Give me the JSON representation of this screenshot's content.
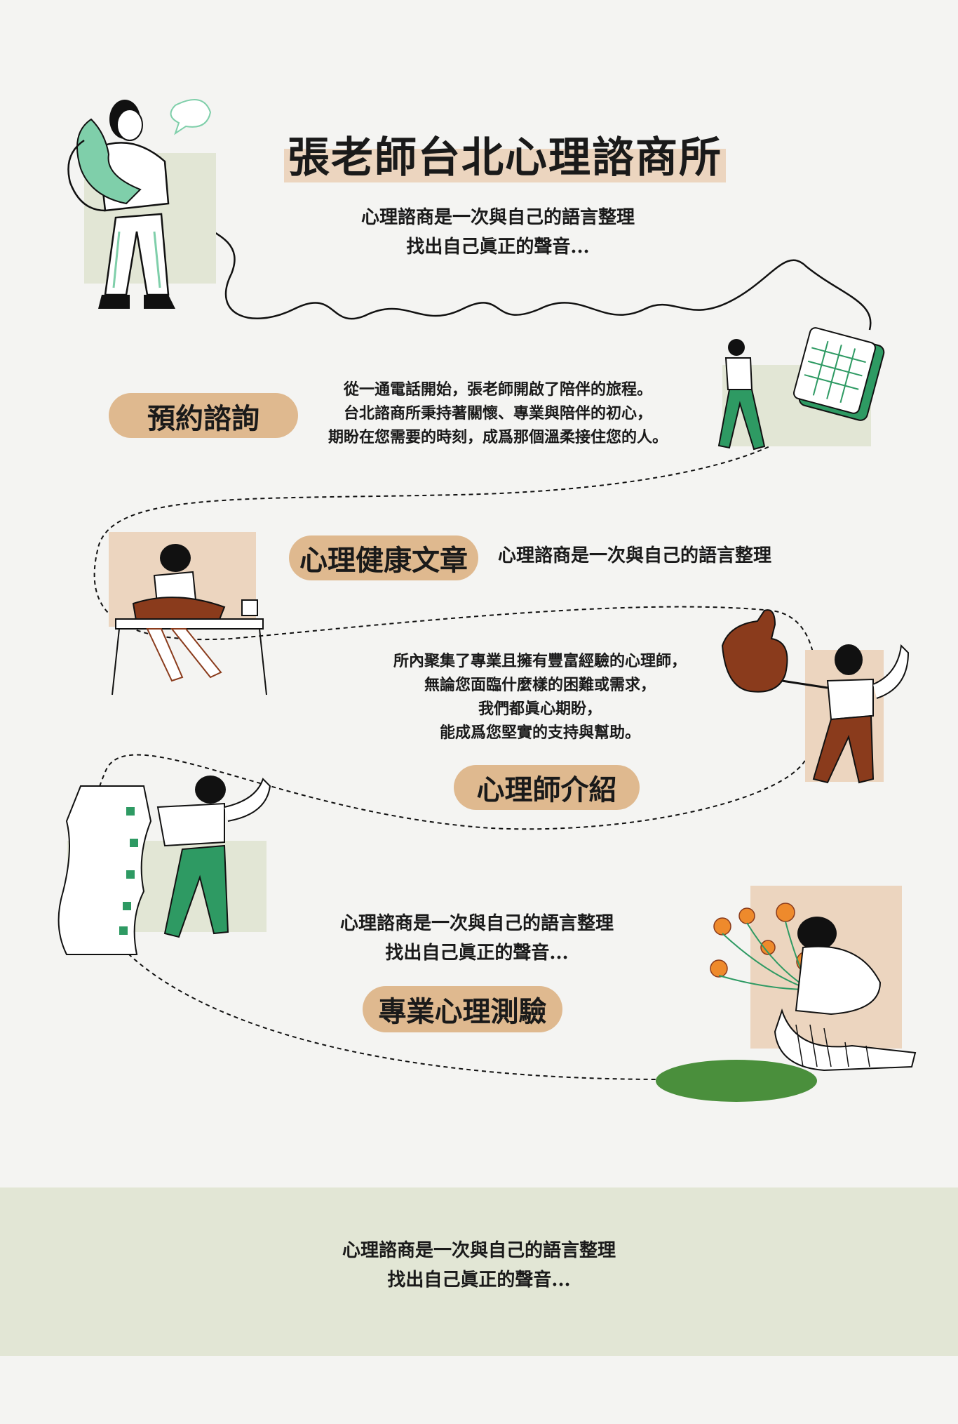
{
  "header": {
    "title": "張老師台北心理諮商所",
    "subtitle_lines": [
      "心理諮商是一次與自己的語言整理",
      "找出自己眞正的聲音..."
    ]
  },
  "sections": {
    "booking": {
      "label": "預約諮詢",
      "text_lines": [
        "從一通電話開始，張老師開啟了陪伴的旅程。",
        "台北諮商所秉持著關懷、專業與陪伴的初心，",
        "期盼在您需要的時刻，成爲那個溫柔接住您的人。"
      ]
    },
    "articles": {
      "label": "心理健康文章",
      "text": "心理諮商是一次與自己的語言整理"
    },
    "therapists": {
      "label": "心理師介紹",
      "text_lines": [
        "所內聚集了專業且擁有豐富經驗的心理師，",
        "無論您面臨什麼樣的困難或需求，",
        "我們都眞心期盼，",
        "能成爲您堅實的支持與幫助。"
      ]
    },
    "tests": {
      "label": "專業心理測驗",
      "text_lines": [
        "心理諮商是一次與自己的語言整理",
        "找出自己眞正的聲音..."
      ]
    }
  },
  "footer": {
    "text_lines": [
      "心理諮商是一次與自己的語言整理",
      "找出自己眞正的聲音..."
    ]
  },
  "colors": {
    "background": "#f4f4f2",
    "sage": "#e2e6d5",
    "tan": "#ecd5bf",
    "pill": "#dfb98f",
    "green": "#2e9a63",
    "mint": "#7fcfaa",
    "brown": "#8a3b1c",
    "orange": "#ee8a2c"
  },
  "icons": [
    "phone-person-illustration",
    "calendar-person-illustration",
    "reading-person-illustration",
    "thumbs-up-person-illustration",
    "checklist-person-illustration",
    "flowers-person-illustration"
  ]
}
